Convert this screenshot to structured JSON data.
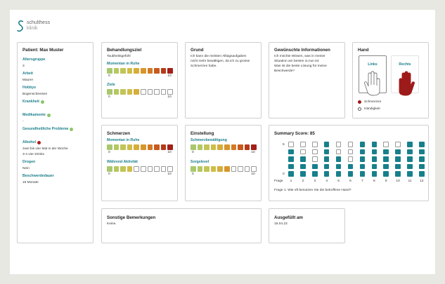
{
  "logo": {
    "name": "schulthess",
    "sub": "klinik"
  },
  "patient": {
    "title": "Patient: Max Muster",
    "fields": [
      {
        "label": "Altersgruppe",
        "lines": [
          "3"
        ]
      },
      {
        "label": "Arbeit",
        "lines": [
          "Maurer"
        ]
      },
      {
        "label": "Hobbys",
        "lines": [
          "Bogenschiessen"
        ]
      },
      {
        "label": "Krankheit",
        "dot": "#8cc56a"
      },
      {
        "label": "Medikamente",
        "dot": "#8cc56a",
        "lines": [
          "-"
        ]
      },
      {
        "label": "Gesundheitliche Probleme",
        "dot": "#8cc56a"
      },
      {
        "label": "Alkohol",
        "dot": "#b01c1c",
        "lines": [
          "zwei bis vier Mal in der Woche",
          "3-4 vier Drinks"
        ]
      },
      {
        "label": "Drogen",
        "lines": [
          "Nein"
        ]
      },
      {
        "label": "Beschwerdedauer",
        "lines": [
          "15 Monate"
        ]
      }
    ]
  },
  "scale": {
    "min": 0,
    "max": 10,
    "colors": [
      "#a9c86d",
      "#b4c862",
      "#c2c458",
      "#cfbd48",
      "#d6ad38",
      "#d7962c",
      "#d47a24",
      "#c85a1e",
      "#b43a1a",
      "#a31f18"
    ]
  },
  "behandlungsziel": {
    "title": "Behandlungsziel",
    "subtitle": "Taubheitsgefühl",
    "scales": [
      {
        "label": "Momentan in Ruhe",
        "value": 10
      },
      {
        "label": "Ziele",
        "value": 5
      }
    ]
  },
  "grund": {
    "title": "Grund",
    "text": "Ich kann die meisten Alltagsaufgaben nicht mehr bewältigen, da ich zu grosse Schmerzen habe."
  },
  "informationen": {
    "title": "Gewünschte Informationen",
    "lines": [
      "Ich möchte Wissen, was in meiner Situation am besten zu tun ist:",
      "Was ist die beste Lösung für meine Beschwerde?"
    ]
  },
  "hand": {
    "title": "Hand",
    "left": "Links",
    "right": "Rechts",
    "legend": [
      {
        "label": "Schmerzen",
        "color": "#9e1b1b"
      },
      {
        "label": "Händigkeit"
      }
    ]
  },
  "schmerzen": {
    "title": "Schmerzen",
    "scales": [
      {
        "label": "Momentan in Ruhe",
        "value": 10
      },
      {
        "label": "Während Aktivität",
        "value": 4
      }
    ]
  },
  "einstellung": {
    "title": "Einstellung",
    "scales": [
      {
        "label": "Schmerzbewältigung",
        "value": 10
      },
      {
        "label": "Sorgelevel",
        "value": 6
      }
    ]
  },
  "summary": {
    "title": "Summary Score: 85",
    "x_label": "Frage",
    "categories": [
      "1",
      "2",
      "3",
      "4",
      "5",
      "6",
      "7",
      "8",
      "9",
      "10",
      "11",
      "12"
    ],
    "values": [
      4,
      3,
      2,
      5,
      3,
      2,
      5,
      5,
      4,
      4,
      5,
      5
    ],
    "ylim": [
      0,
      5
    ],
    "yticks": [
      0,
      5
    ],
    "color": "#17808b",
    "caption": "Frage 1: Wie oft benutzen Sie die betroffene Hand?"
  },
  "bemerkungen": {
    "title": "Sonstige Bemerkungen",
    "text": "Keine."
  },
  "ausgefuellt": {
    "title": "Ausgefüllt am",
    "text": "16.04.23"
  }
}
